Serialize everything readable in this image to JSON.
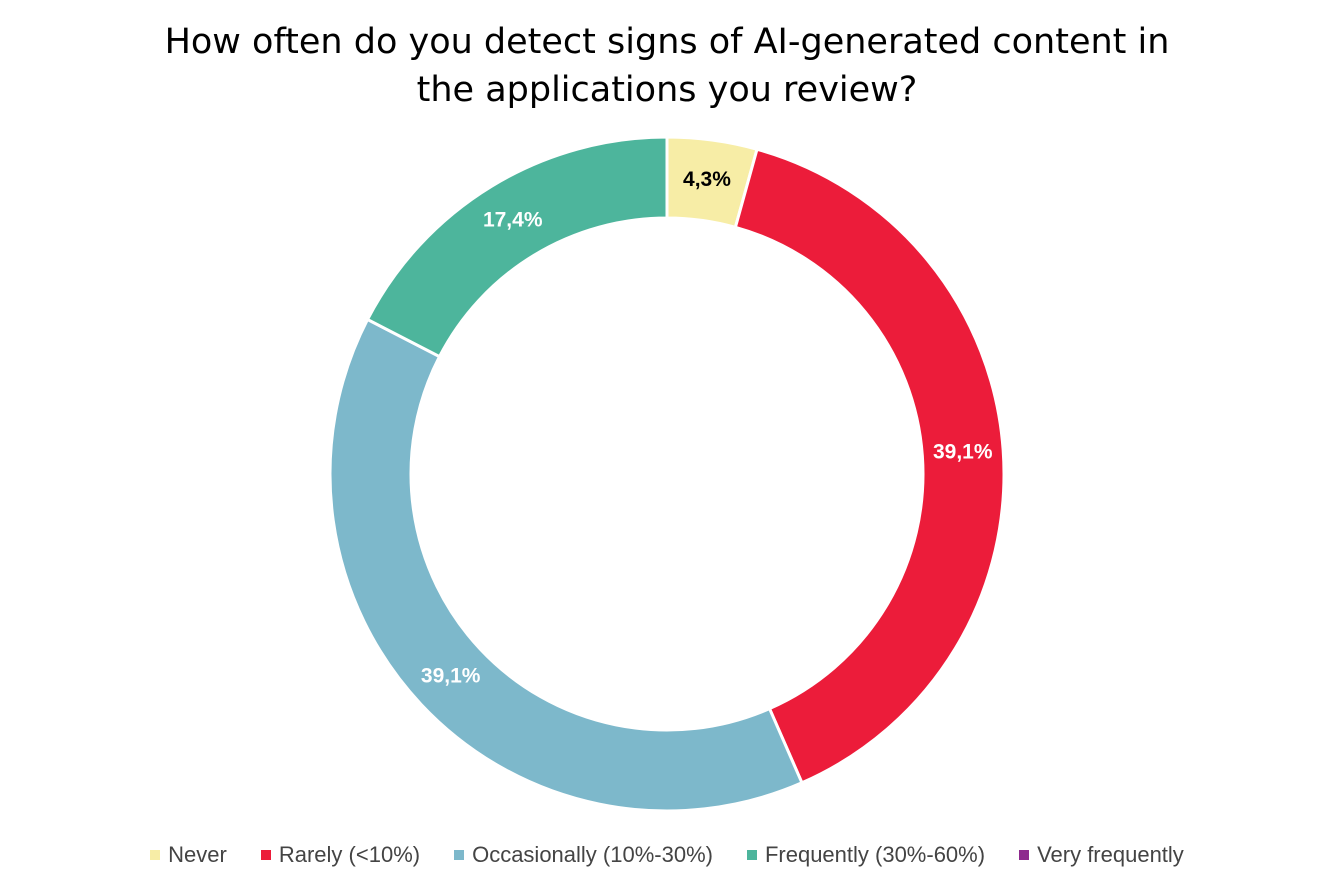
{
  "chart_data": {
    "type": "donut",
    "title": "How often do you detect signs of AI-generated content in the applications you review?",
    "categories": [
      "Never",
      "Rarely (<10%)",
      "Occasionally (10%-30%)",
      "Frequently (30%-60%)",
      "Very frequently"
    ],
    "values": [
      4.3,
      39.1,
      39.1,
      17.4,
      0
    ],
    "value_labels": [
      "4,3%",
      "39,1%",
      "39,1%",
      "17,4%",
      null
    ],
    "colors": [
      "#f7eda6",
      "#ec1c3a",
      "#7db8cb",
      "#4db59c",
      "#8e2a8e"
    ],
    "legend": "bottom"
  }
}
